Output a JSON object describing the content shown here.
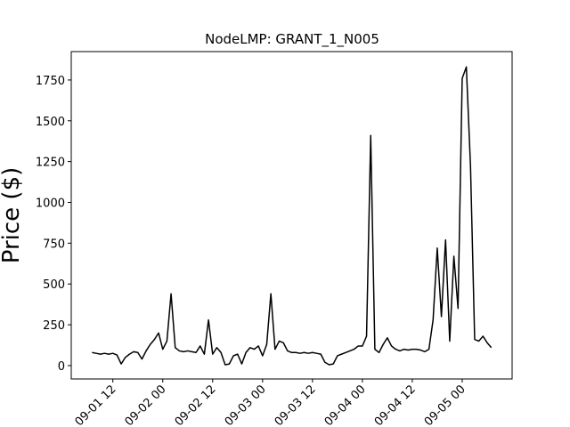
{
  "chart_data": {
    "type": "line",
    "title": "NodeLMP: GRANT_1_N005",
    "ylabel": "Price ($)",
    "x": [
      "09-01 07",
      "09-01 08",
      "09-01 09",
      "09-01 10",
      "09-01 11",
      "09-01 12",
      "09-01 13",
      "09-01 14",
      "09-01 15",
      "09-01 16",
      "09-01 17",
      "09-01 18",
      "09-01 19",
      "09-01 20",
      "09-01 21",
      "09-01 22",
      "09-01 23",
      "09-02 00",
      "09-02 01",
      "09-02 02",
      "09-02 03",
      "09-02 04",
      "09-02 05",
      "09-02 06",
      "09-02 07",
      "09-02 08",
      "09-02 09",
      "09-02 10",
      "09-02 11",
      "09-02 12",
      "09-02 13",
      "09-02 14",
      "09-02 15",
      "09-02 16",
      "09-02 17",
      "09-02 18",
      "09-02 19",
      "09-02 20",
      "09-02 21",
      "09-02 22",
      "09-02 23",
      "09-03 00",
      "09-03 01",
      "09-03 02",
      "09-03 03",
      "09-03 04",
      "09-03 05",
      "09-03 06",
      "09-03 07",
      "09-03 08",
      "09-03 09",
      "09-03 10",
      "09-03 11",
      "09-03 12",
      "09-03 13",
      "09-03 14",
      "09-03 15",
      "09-03 16",
      "09-03 17",
      "09-03 18",
      "09-03 19",
      "09-03 20",
      "09-03 21",
      "09-03 22",
      "09-03 23",
      "09-04 00",
      "09-04 01",
      "09-04 02",
      "09-04 03",
      "09-04 04",
      "09-04 05",
      "09-04 06",
      "09-04 07",
      "09-04 08",
      "09-04 09",
      "09-04 10",
      "09-04 11",
      "09-04 12",
      "09-04 13",
      "09-04 14",
      "09-04 15",
      "09-04 16",
      "09-04 17",
      "09-04 18",
      "09-04 19",
      "09-04 20",
      "09-04 21",
      "09-04 22",
      "09-04 23",
      "09-05 00",
      "09-05 01",
      "09-05 02",
      "09-05 03",
      "09-05 04",
      "09-05 05",
      "09-05 06",
      "09-05 07"
    ],
    "series": [
      {
        "color": "#000000",
        "values": [
          80,
          75,
          70,
          75,
          70,
          75,
          65,
          10,
          50,
          70,
          85,
          80,
          40,
          90,
          130,
          160,
          200,
          100,
          150,
          440,
          110,
          90,
          85,
          90,
          85,
          80,
          120,
          70,
          280,
          70,
          110,
          80,
          5,
          10,
          60,
          70,
          10,
          80,
          110,
          100,
          120,
          60,
          130,
          440,
          100,
          150,
          140,
          90,
          80,
          80,
          75,
          80,
          75,
          80,
          75,
          70,
          20,
          5,
          10,
          60,
          70,
          80,
          90,
          100,
          120,
          120,
          180,
          1410,
          100,
          80,
          130,
          170,
          120,
          100,
          90,
          100,
          95,
          100,
          100,
          95,
          85,
          100,
          280,
          720,
          300,
          770,
          150,
          670,
          350,
          1760,
          1830,
          1220,
          160,
          150,
          180,
          140,
          110
        ]
      }
    ],
    "xlim": [
      "09-01 02",
      "09-05 12"
    ],
    "xticks": [
      "09-01 12",
      "09-02 00",
      "09-02 12",
      "09-03 00",
      "09-03 12",
      "09-04 00",
      "09-04 12",
      "09-05 00"
    ],
    "ylim": [
      -82,
      1924
    ],
    "yticks": [
      0,
      250,
      500,
      750,
      1000,
      1250,
      1500,
      1750
    ]
  }
}
